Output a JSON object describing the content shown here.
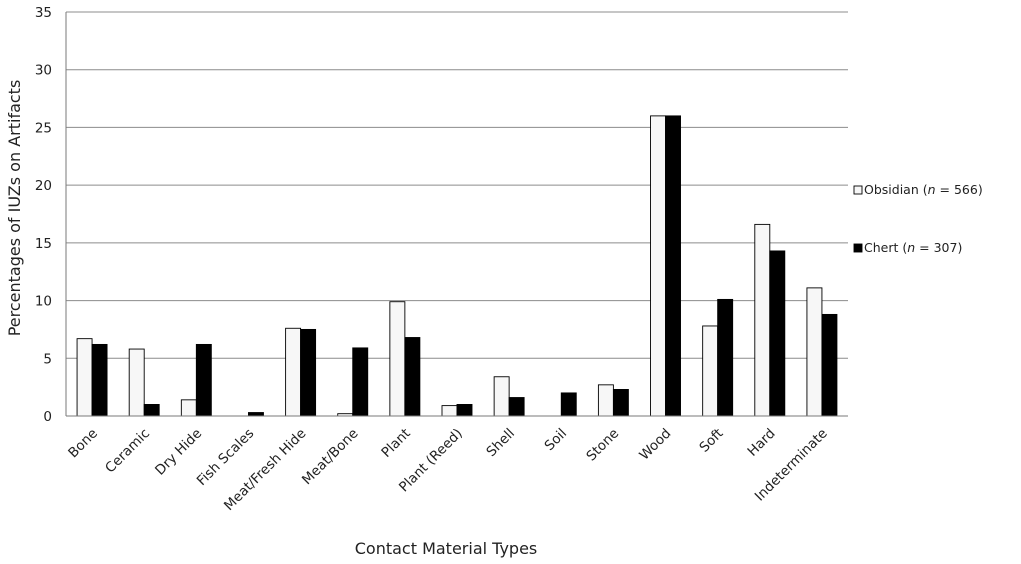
{
  "chart_data": {
    "type": "bar",
    "xlabel": "Contact Material Types",
    "ylabel": "Percentages of IUZs on Artifacts",
    "ylim": [
      0,
      35
    ],
    "yticks": [
      0,
      5,
      10,
      15,
      20,
      25,
      30,
      35
    ],
    "grid": true,
    "legend_position": "right",
    "categories": [
      "Bone",
      "Ceramic",
      "Dry Hide",
      "Fish Scales",
      "Meat/Fresh Hide",
      "Meat/Bone",
      "Plant",
      "Plant (Reed)",
      "Shell",
      "Soil",
      "Stone",
      "Wood",
      "Soft",
      "Hard",
      "Indeterminate"
    ],
    "series": [
      {
        "name": "Obsidian (n = 566)",
        "legend_prefix": "Obsidian (",
        "legend_var": "n",
        "legend_suffix": " = 566)",
        "color": "#f7f7f7",
        "values": [
          6.7,
          5.8,
          1.4,
          0,
          7.6,
          0.2,
          9.9,
          0.9,
          3.4,
          0,
          2.7,
          26.0,
          7.8,
          16.6,
          11.1
        ]
      },
      {
        "name": "Chert (n = 307)",
        "legend_prefix": "Chert (",
        "legend_var": "n",
        "legend_suffix": " = 307)",
        "color": "#000000",
        "values": [
          6.2,
          1.0,
          6.2,
          0.3,
          7.5,
          5.9,
          6.8,
          1.0,
          1.6,
          2.0,
          2.3,
          26.0,
          10.1,
          14.3,
          8.8
        ]
      }
    ]
  }
}
